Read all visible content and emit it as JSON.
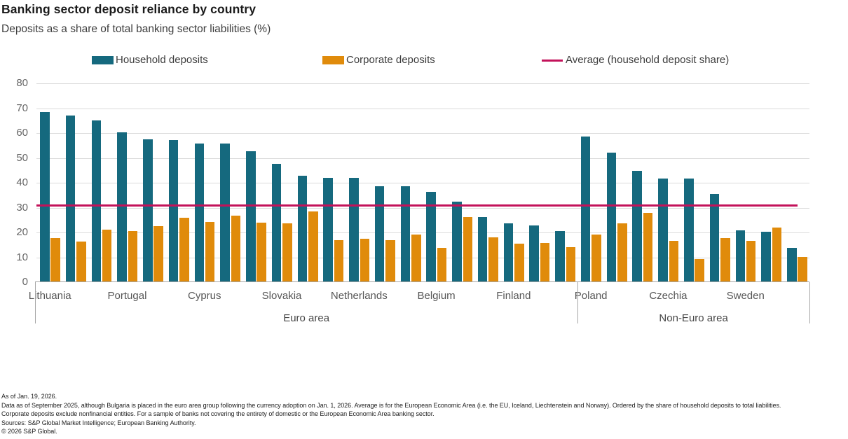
{
  "title": "Banking sector deposit reliance by country",
  "subtitle": "Deposits as a share of total banking sector liabilities (%)",
  "colors": {
    "household": "#15697E",
    "corporate": "#E08B0B",
    "average_line": "#C3125A",
    "gridline": "#DBDBDB",
    "axis": "#A6A6A6"
  },
  "legend": [
    {
      "label": "Household deposits",
      "color": "#15697E",
      "type": "box"
    },
    {
      "label": "Corporate deposits",
      "color": "#E08B0B",
      "type": "box"
    },
    {
      "label": "Average (household deposit share)",
      "color": "#C3125A",
      "type": "line"
    }
  ],
  "chart_data": {
    "type": "bar",
    "ylim": [
      0,
      80
    ],
    "yticks": [
      0,
      10,
      20,
      30,
      40,
      50,
      60,
      70,
      80
    ],
    "grid": true,
    "legend_position": "top",
    "n_categories": 30,
    "x_tick_labels": [
      {
        "index": 0,
        "label": "Lithuania"
      },
      {
        "index": 3,
        "label": "Portugal"
      },
      {
        "index": 6,
        "label": "Cyprus"
      },
      {
        "index": 9,
        "label": "Slovakia"
      },
      {
        "index": 12,
        "label": "Netherlands"
      },
      {
        "index": 15,
        "label": "Belgium"
      },
      {
        "index": 18,
        "label": "Finland"
      },
      {
        "index": 21,
        "label": "Poland"
      },
      {
        "index": 24,
        "label": "Czechia"
      },
      {
        "index": 27,
        "label": "Sweden"
      }
    ],
    "series": [
      {
        "name": "Household deposits",
        "color": "#15697E",
        "values": [
          68.5,
          67.0,
          65.0,
          60.3,
          57.6,
          57.1,
          55.9,
          55.7,
          52.7,
          47.7,
          42.7,
          41.9,
          41.9,
          38.7,
          38.7,
          36.3,
          32.4,
          26.3,
          23.6,
          22.8,
          20.7,
          58.5,
          52.2,
          44.9,
          41.7,
          41.7,
          35.4,
          20.9,
          20.4,
          13.9
        ]
      },
      {
        "name": "Corporate deposits",
        "color": "#E08B0B",
        "values": [
          17.8,
          16.4,
          21.2,
          20.6,
          22.6,
          25.9,
          24.2,
          26.8,
          23.9,
          23.7,
          28.4,
          16.9,
          17.6,
          17.0,
          19.3,
          13.9,
          26.1,
          17.9,
          15.6,
          15.8,
          14.2,
          19.3,
          23.7,
          27.9,
          16.7,
          9.2,
          17.8,
          16.6,
          22.0,
          10.2
        ]
      }
    ],
    "average_line": {
      "label": "Average (household deposit share)",
      "value": 30.9,
      "color": "#C3125A"
    },
    "groups": [
      {
        "label": "Euro area",
        "start_index": 0,
        "end_index": 20
      },
      {
        "label": "Non-Euro area",
        "start_index": 21,
        "end_index": 29
      }
    ]
  },
  "footnotes": [
    "As of Jan. 19, 2026.",
    "Data as of September 2025, although Bulgaria is placed in the euro area group following the currency adoption on Jan. 1, 2026. Average is for the European Economic Area (i.e. the EU, Iceland, Liechtenstein and Norway). Ordered by the share of household deposits to total liabilities.",
    "Corporate deposits exclude nonfinancial entities. For a sample of banks not covering the entirety of domestic or the European Economic Area banking sector.",
    "Sources: S&P Global Market Intelligence; European Banking Authority.",
    "© 2026 S&P Global."
  ]
}
